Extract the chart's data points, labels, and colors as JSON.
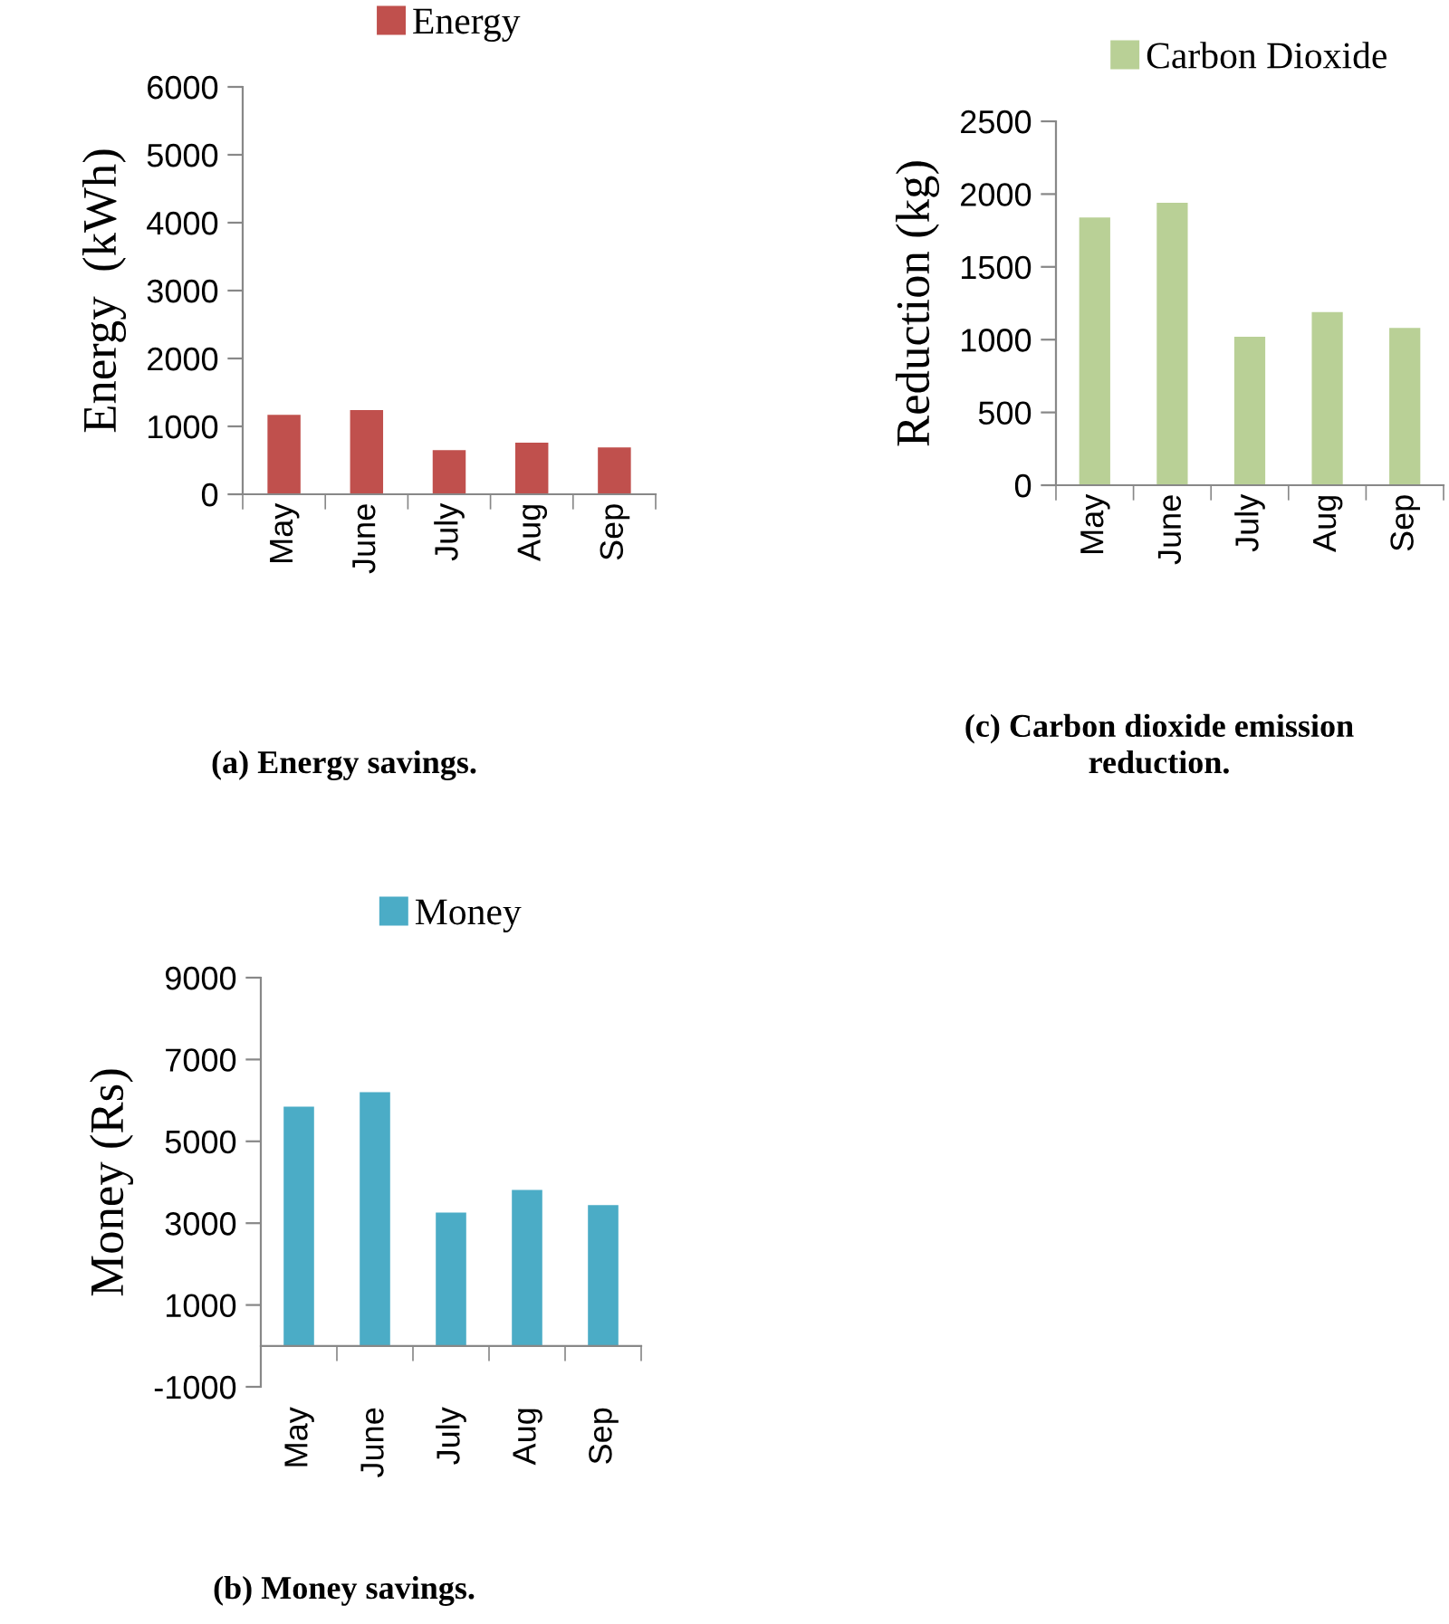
{
  "chart_data": [
    {
      "type": "bar",
      "categories": [
        "May",
        "June",
        "July",
        "Aug",
        "Sep"
      ],
      "ylabel": "Energy  (kWh)",
      "ylim": [
        0,
        6000
      ],
      "yticks": [
        0,
        1000,
        2000,
        3000,
        4000,
        5000,
        6000
      ],
      "grid": false,
      "legend": "top",
      "series": [
        {
          "name": "Energy",
          "color": "#c0504d",
          "values": [
            1170,
            1240,
            650,
            760,
            690
          ]
        }
      ],
      "annotations": [
        "(a) Energy savings."
      ]
    },
    {
      "type": "bar",
      "categories": [
        "May",
        "June",
        "July",
        "Aug",
        "Sep"
      ],
      "ylabel": "Reduction (kg)",
      "ylim": [
        0,
        2500
      ],
      "yticks": [
        0,
        500,
        1000,
        1500,
        2000,
        2500
      ],
      "grid": false,
      "legend": "top",
      "series": [
        {
          "name": "Carbon Dioxide",
          "color": "#b9d096",
          "values": [
            1840,
            1940,
            1020,
            1190,
            1080
          ]
        }
      ],
      "annotations": [
        "(c) Carbon dioxide emission\nreduction."
      ]
    },
    {
      "type": "bar",
      "categories": [
        "May",
        "June",
        "July",
        "Aug",
        "Sep"
      ],
      "ylabel": "Money (Rs)",
      "ylim": [
        -1000,
        9000
      ],
      "yticks": [
        -1000,
        1000,
        3000,
        5000,
        7000,
        9000
      ],
      "grid": false,
      "legend": "top",
      "series": [
        {
          "name": "Money",
          "color": "#4bacc6",
          "values": [
            5850,
            6200,
            3260,
            3810,
            3440
          ]
        }
      ],
      "annotations": [
        "(b) Money savings."
      ]
    }
  ]
}
